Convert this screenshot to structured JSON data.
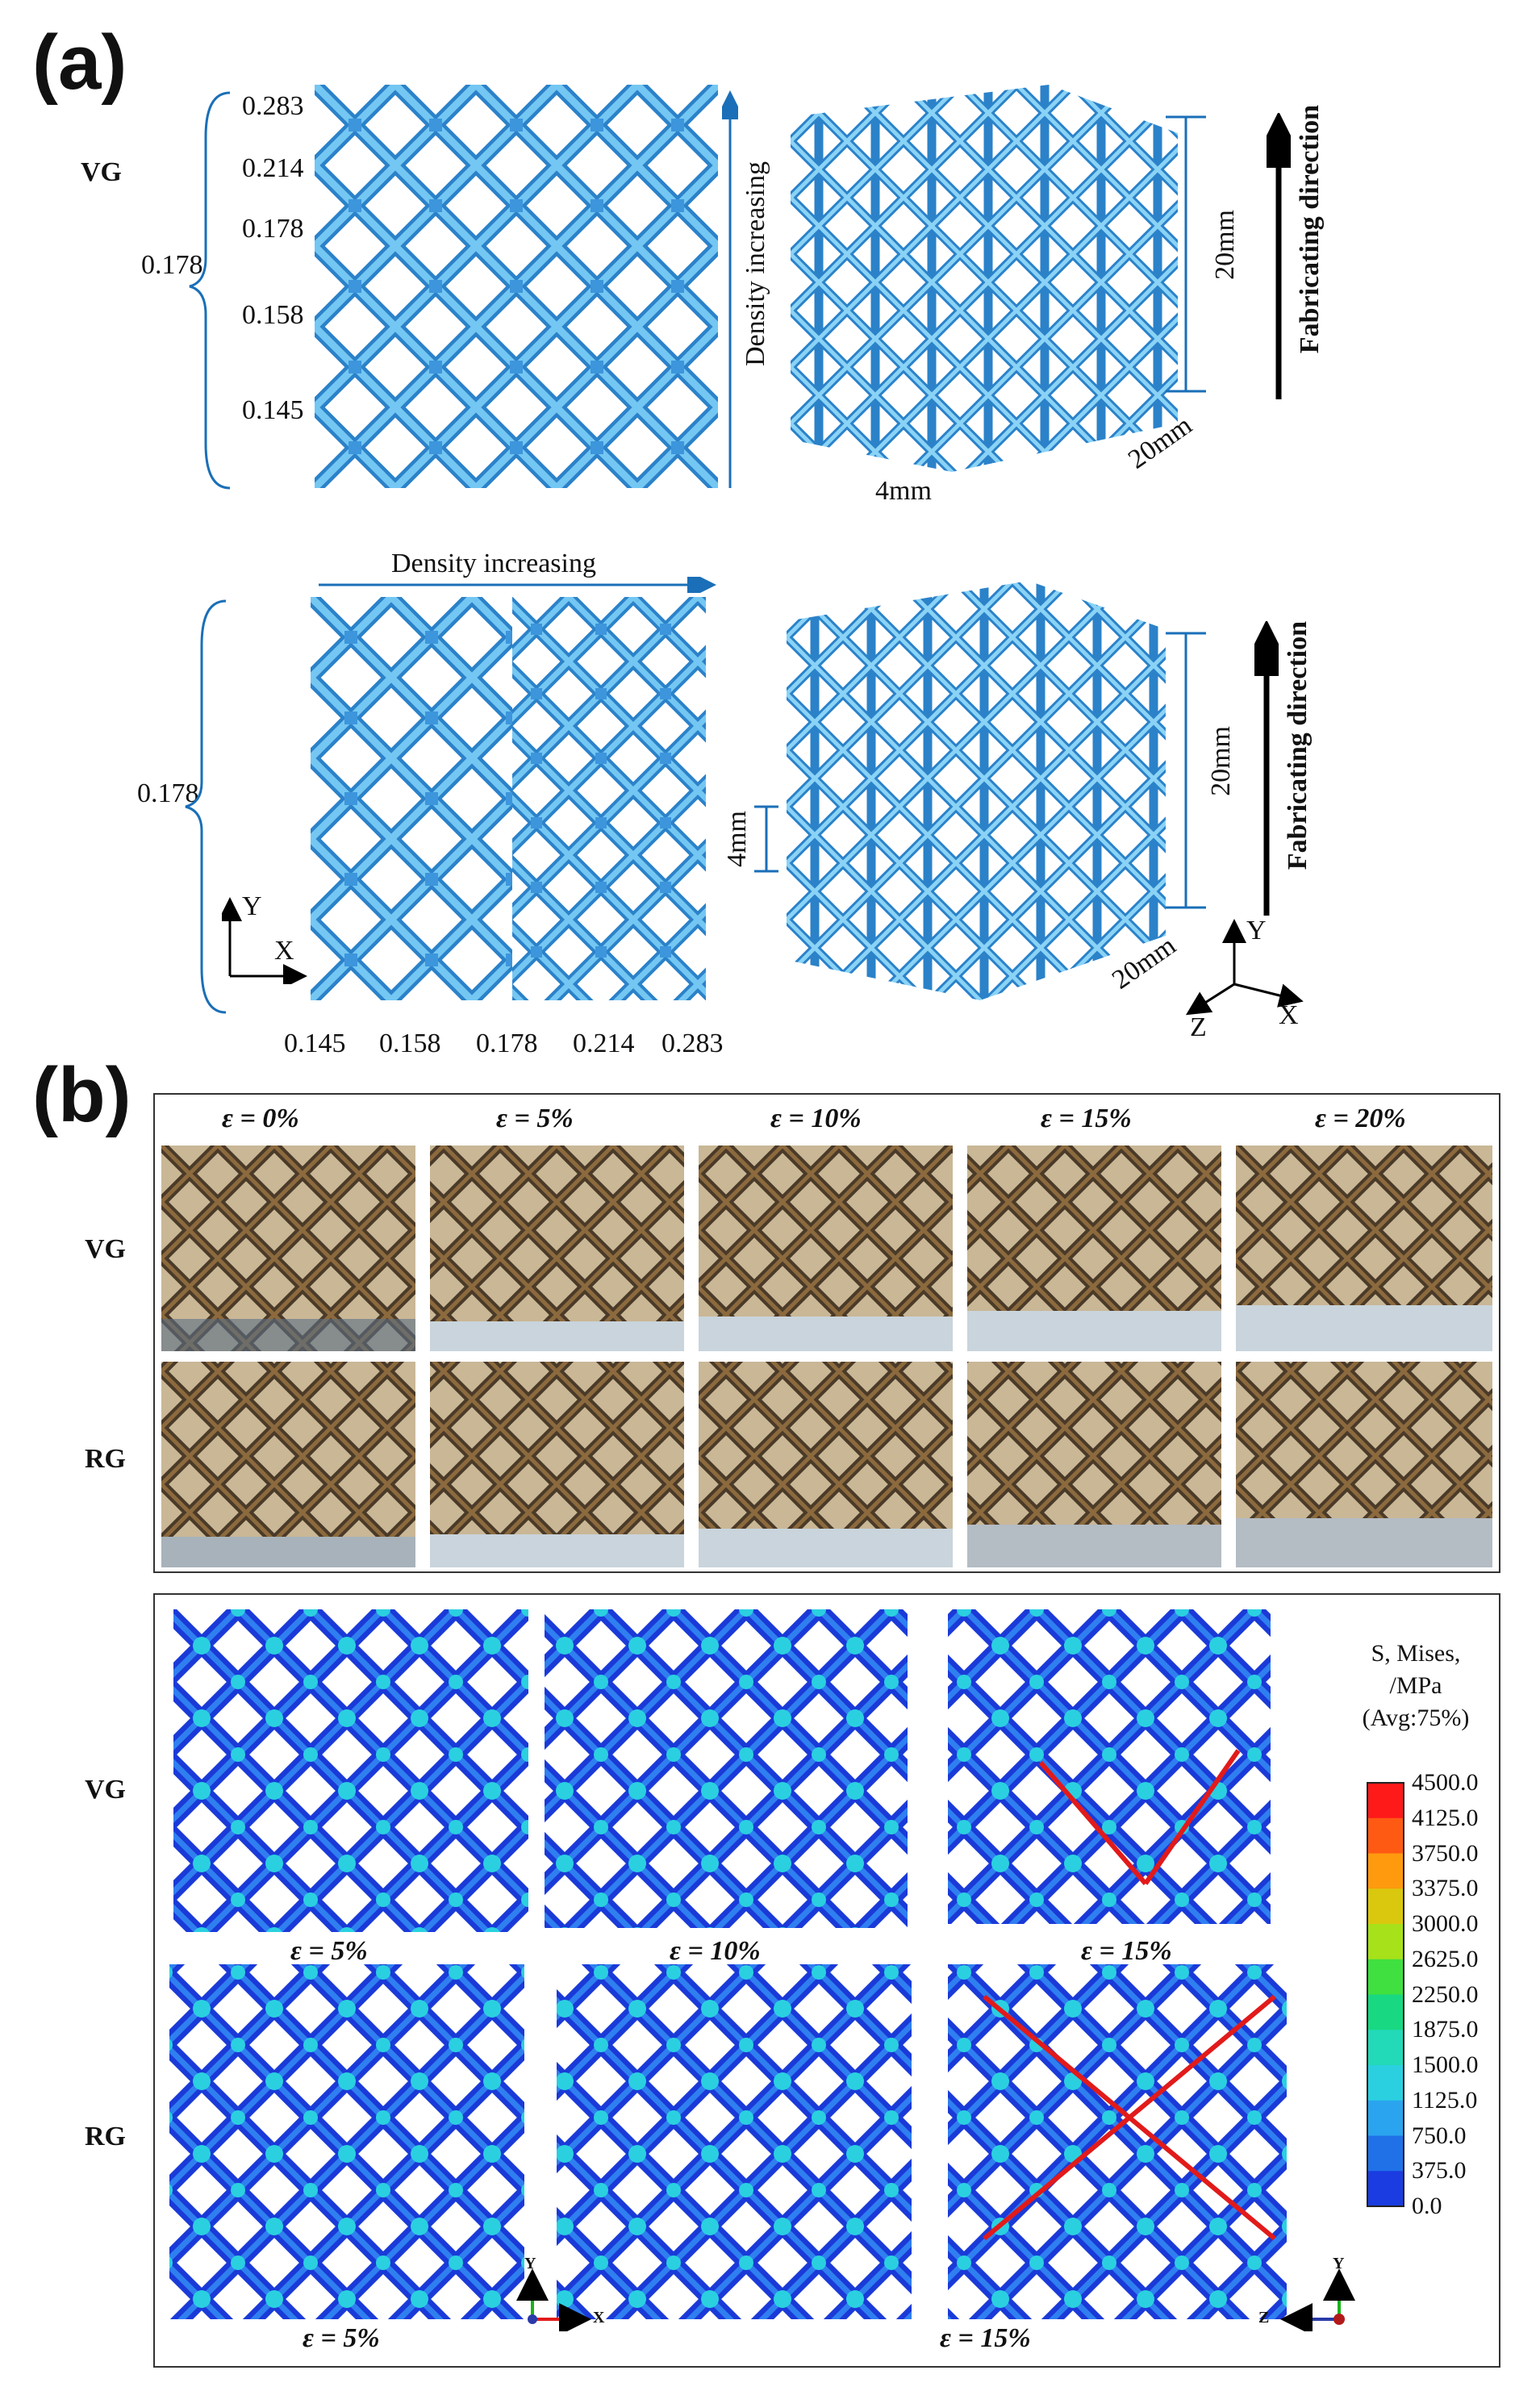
{
  "panel_a": {
    "letter": "(a)",
    "vg": {
      "row_label": "VG",
      "side_value": "0.178",
      "densities": [
        "0.283",
        "0.214",
        "0.178",
        "0.158",
        "0.145"
      ],
      "arrow_label": "Density increasing",
      "dim_height": "20mm",
      "dim_depth": "20mm",
      "dim_cell": "4mm",
      "fab_label": "Fabricating direction"
    },
    "rg": {
      "arrow_label": "Density increasing",
      "side_value": "0.178",
      "densities": [
        "0.145",
        "0.158",
        "0.178",
        "0.214",
        "0.283"
      ],
      "dim_height": "20mm",
      "dim_depth": "20mm",
      "dim_cell": "4mm",
      "fab_label": "Fabricating direction",
      "axes2d": {
        "y": "Y",
        "x": "X"
      },
      "axes3d": {
        "y": "Y",
        "x": "X",
        "z": "Z"
      }
    }
  },
  "panel_b": {
    "letter": "(b)",
    "photo_strains": [
      "ε = 0%",
      "ε = 5%",
      "ε = 10%",
      "ε = 15%",
      "ε = 20%"
    ],
    "row_vg": "VG",
    "row_rg": "RG",
    "fea_row_vg": "VG",
    "fea_row_rg": "RG",
    "fea_vg_strains": [
      "ε = 5%",
      "ε = 10%",
      "ε = 15%"
    ],
    "fea_rg_strains": [
      "ε = 5%",
      "ε = 15%"
    ],
    "colorbar": {
      "title_lines": [
        "S, Mises,",
        "/MPa",
        "(Avg:75%)"
      ],
      "ticks": [
        "4500.0",
        "4125.0",
        "3750.0",
        "3375.0",
        "3000.0",
        "2625.0",
        "2250.0",
        "1875.0",
        "1500.0",
        "1125.0",
        "750.0",
        "375.0",
        "0.0"
      ],
      "colors": [
        "#ff1a1a",
        "#ff5a14",
        "#ff9a0e",
        "#d9c80e",
        "#a6e11a",
        "#3fe03f",
        "#18d882",
        "#22d9b8",
        "#2ad0e0",
        "#2aa4ee",
        "#2070e8",
        "#1a3ce0"
      ]
    },
    "fea_axes_left": {
      "y": "Y",
      "x": "X"
    },
    "fea_axes_right": {
      "y": "Y",
      "z": "Z"
    }
  }
}
